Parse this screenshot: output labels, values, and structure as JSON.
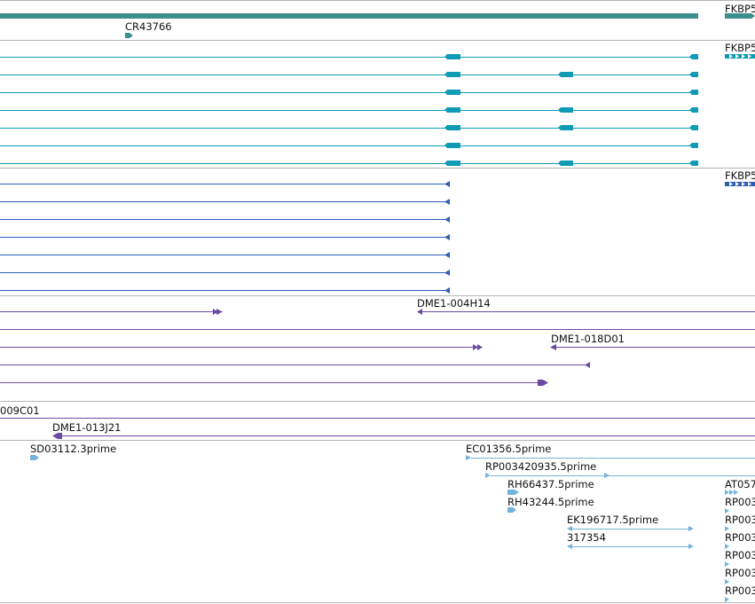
{
  "colors": {
    "gene": "#3d8f8f",
    "cdna": "#0f9bb4",
    "protein": "#2d5eb4",
    "bac": "#6a4ba0",
    "est": "#74b4dc",
    "separator": "#b4b4b4",
    "label": "#111111"
  },
  "tracks": {
    "gene": {
      "labels": [
        "FKBP5",
        "CR43766"
      ]
    },
    "transcripts_a": {
      "label": "FKBP5"
    },
    "transcripts_b": {
      "label": "FKBP5"
    },
    "bac_ends": {
      "labels": [
        "DME1-004H14",
        "DME1-018D01",
        "009C01",
        "DME1-013J21"
      ]
    },
    "ests": {
      "labels": [
        "SD03112.3prime",
        "EC01356.5prime",
        "RP003420935.5prime",
        "RH66437.5prime",
        "RH43244.5prime",
        "EK196717.5prime",
        "317354",
        "AT057",
        "RP003",
        "RP003",
        "RP003",
        "RP003"
      ]
    }
  }
}
